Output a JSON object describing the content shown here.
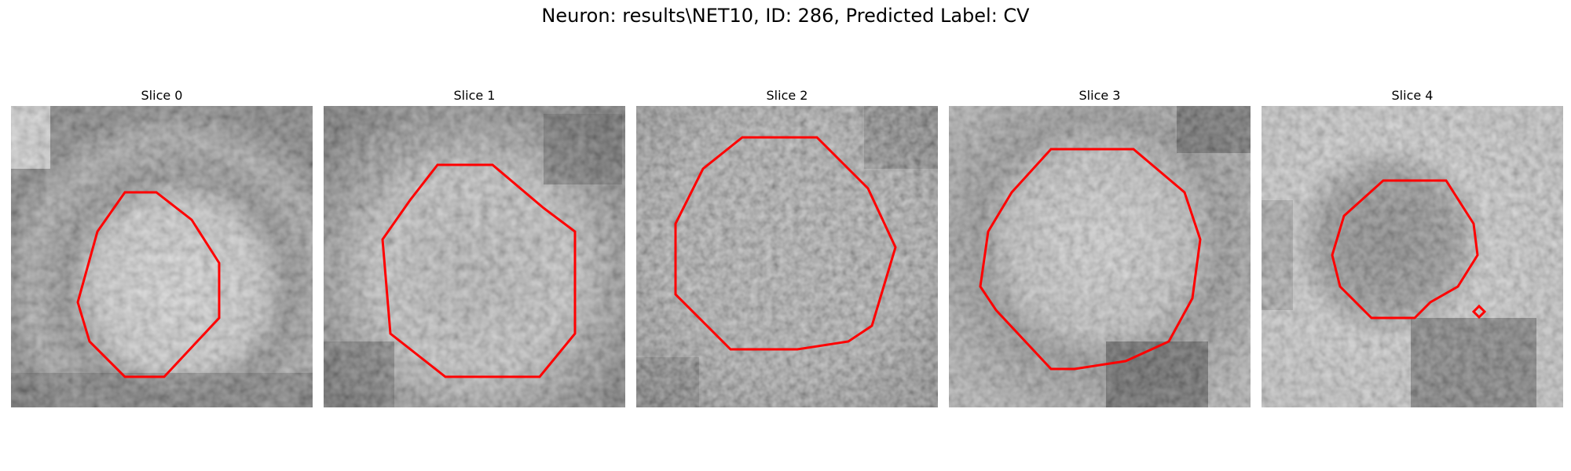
{
  "figure": {
    "title": "Neuron: results\\NET10, ID: 286, Predicted Label: CV"
  },
  "panels": [
    {
      "title": "Slice 0"
    },
    {
      "title": "Slice 1"
    },
    {
      "title": "Slice 2"
    },
    {
      "title": "Slice 3"
    },
    {
      "title": "Slice 4"
    }
  ],
  "colors": {
    "contour": "#ff0000"
  }
}
